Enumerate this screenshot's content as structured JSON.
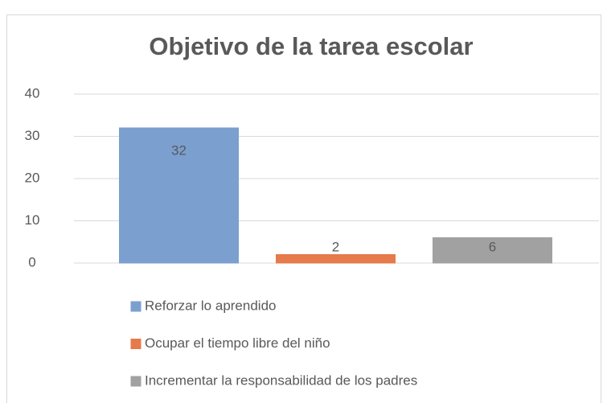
{
  "chart_data": {
    "type": "bar",
    "title": "Objetivo de la tarea escolar",
    "categories": [
      null
    ],
    "series": [
      {
        "name": "Reforzar lo aprendido",
        "color": "#a9c5ea",
        "values": [
          32
        ]
      },
      {
        "name": "Ocupar el tiempo libre del niño",
        "color": "#f6a27c",
        "values": [
          2
        ]
      },
      {
        "name": "Incrementar la responsabilidad de los padres",
        "color": "#c9c9c9",
        "values": [
          6
        ]
      }
    ],
    "ylim": [
      0,
      40
    ],
    "yticks": [
      0,
      10,
      20,
      30,
      40
    ],
    "grid": true,
    "legend": "bottom"
  }
}
